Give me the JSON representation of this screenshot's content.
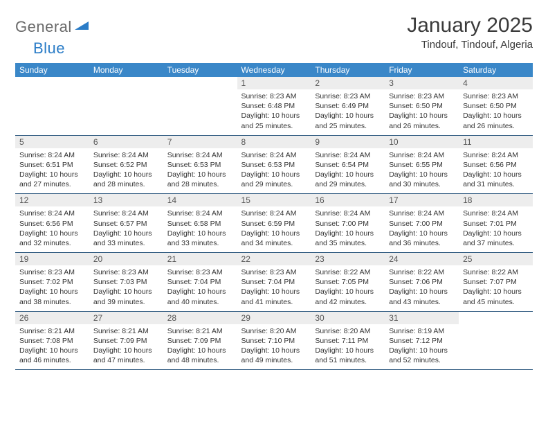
{
  "logo": {
    "text1": "General",
    "text2": "Blue"
  },
  "title": "January 2025",
  "location": "Tindouf, Tindouf, Algeria",
  "colors": {
    "header_bg": "#3a87c8",
    "header_text": "#ffffff",
    "daynum_bg": "#ededed",
    "row_border": "#2f5a80",
    "logo_gray": "#6a6a6a",
    "logo_blue": "#2a7cc7",
    "body_text": "#333333"
  },
  "typography": {
    "title_fontsize": 30,
    "location_fontsize": 15,
    "th_fontsize": 12,
    "daynum_fontsize": 12,
    "body_fontsize": 10.5
  },
  "weekdays": [
    "Sunday",
    "Monday",
    "Tuesday",
    "Wednesday",
    "Thursday",
    "Friday",
    "Saturday"
  ],
  "weeks": [
    [
      null,
      null,
      null,
      {
        "n": "1",
        "sr": "8:23 AM",
        "ss": "6:48 PM",
        "dl": "10 hours and 25 minutes."
      },
      {
        "n": "2",
        "sr": "8:23 AM",
        "ss": "6:49 PM",
        "dl": "10 hours and 25 minutes."
      },
      {
        "n": "3",
        "sr": "8:23 AM",
        "ss": "6:50 PM",
        "dl": "10 hours and 26 minutes."
      },
      {
        "n": "4",
        "sr": "8:23 AM",
        "ss": "6:50 PM",
        "dl": "10 hours and 26 minutes."
      }
    ],
    [
      {
        "n": "5",
        "sr": "8:24 AM",
        "ss": "6:51 PM",
        "dl": "10 hours and 27 minutes."
      },
      {
        "n": "6",
        "sr": "8:24 AM",
        "ss": "6:52 PM",
        "dl": "10 hours and 28 minutes."
      },
      {
        "n": "7",
        "sr": "8:24 AM",
        "ss": "6:53 PM",
        "dl": "10 hours and 28 minutes."
      },
      {
        "n": "8",
        "sr": "8:24 AM",
        "ss": "6:53 PM",
        "dl": "10 hours and 29 minutes."
      },
      {
        "n": "9",
        "sr": "8:24 AM",
        "ss": "6:54 PM",
        "dl": "10 hours and 29 minutes."
      },
      {
        "n": "10",
        "sr": "8:24 AM",
        "ss": "6:55 PM",
        "dl": "10 hours and 30 minutes."
      },
      {
        "n": "11",
        "sr": "8:24 AM",
        "ss": "6:56 PM",
        "dl": "10 hours and 31 minutes."
      }
    ],
    [
      {
        "n": "12",
        "sr": "8:24 AM",
        "ss": "6:56 PM",
        "dl": "10 hours and 32 minutes."
      },
      {
        "n": "13",
        "sr": "8:24 AM",
        "ss": "6:57 PM",
        "dl": "10 hours and 33 minutes."
      },
      {
        "n": "14",
        "sr": "8:24 AM",
        "ss": "6:58 PM",
        "dl": "10 hours and 33 minutes."
      },
      {
        "n": "15",
        "sr": "8:24 AM",
        "ss": "6:59 PM",
        "dl": "10 hours and 34 minutes."
      },
      {
        "n": "16",
        "sr": "8:24 AM",
        "ss": "7:00 PM",
        "dl": "10 hours and 35 minutes."
      },
      {
        "n": "17",
        "sr": "8:24 AM",
        "ss": "7:00 PM",
        "dl": "10 hours and 36 minutes."
      },
      {
        "n": "18",
        "sr": "8:24 AM",
        "ss": "7:01 PM",
        "dl": "10 hours and 37 minutes."
      }
    ],
    [
      {
        "n": "19",
        "sr": "8:23 AM",
        "ss": "7:02 PM",
        "dl": "10 hours and 38 minutes."
      },
      {
        "n": "20",
        "sr": "8:23 AM",
        "ss": "7:03 PM",
        "dl": "10 hours and 39 minutes."
      },
      {
        "n": "21",
        "sr": "8:23 AM",
        "ss": "7:04 PM",
        "dl": "10 hours and 40 minutes."
      },
      {
        "n": "22",
        "sr": "8:23 AM",
        "ss": "7:04 PM",
        "dl": "10 hours and 41 minutes."
      },
      {
        "n": "23",
        "sr": "8:22 AM",
        "ss": "7:05 PM",
        "dl": "10 hours and 42 minutes."
      },
      {
        "n": "24",
        "sr": "8:22 AM",
        "ss": "7:06 PM",
        "dl": "10 hours and 43 minutes."
      },
      {
        "n": "25",
        "sr": "8:22 AM",
        "ss": "7:07 PM",
        "dl": "10 hours and 45 minutes."
      }
    ],
    [
      {
        "n": "26",
        "sr": "8:21 AM",
        "ss": "7:08 PM",
        "dl": "10 hours and 46 minutes."
      },
      {
        "n": "27",
        "sr": "8:21 AM",
        "ss": "7:09 PM",
        "dl": "10 hours and 47 minutes."
      },
      {
        "n": "28",
        "sr": "8:21 AM",
        "ss": "7:09 PM",
        "dl": "10 hours and 48 minutes."
      },
      {
        "n": "29",
        "sr": "8:20 AM",
        "ss": "7:10 PM",
        "dl": "10 hours and 49 minutes."
      },
      {
        "n": "30",
        "sr": "8:20 AM",
        "ss": "7:11 PM",
        "dl": "10 hours and 51 minutes."
      },
      {
        "n": "31",
        "sr": "8:19 AM",
        "ss": "7:12 PM",
        "dl": "10 hours and 52 minutes."
      },
      null
    ]
  ],
  "labels": {
    "sunrise": "Sunrise:",
    "sunset": "Sunset:",
    "daylight": "Daylight:"
  }
}
